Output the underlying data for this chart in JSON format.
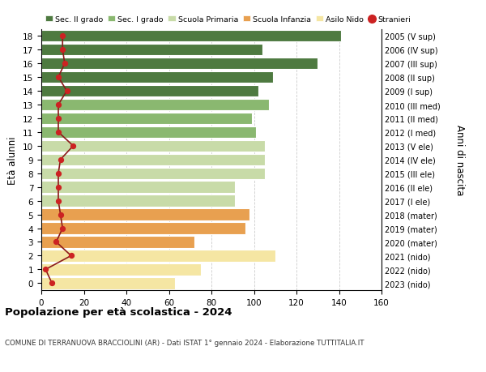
{
  "ages": [
    0,
    1,
    2,
    3,
    4,
    5,
    6,
    7,
    8,
    9,
    10,
    11,
    12,
    13,
    14,
    15,
    16,
    17,
    18
  ],
  "bar_values": [
    63,
    75,
    110,
    72,
    96,
    98,
    91,
    91,
    105,
    105,
    105,
    101,
    99,
    107,
    102,
    109,
    130,
    104,
    141
  ],
  "bar_colors": [
    "#f5e6a3",
    "#f5e6a3",
    "#f5e6a3",
    "#e8a050",
    "#e8a050",
    "#e8a050",
    "#c8dba8",
    "#c8dba8",
    "#c8dba8",
    "#c8dba8",
    "#c8dba8",
    "#8ab870",
    "#8ab870",
    "#8ab870",
    "#4e7a40",
    "#4e7a40",
    "#4e7a40",
    "#4e7a40",
    "#4e7a40"
  ],
  "stranieri_values": [
    5,
    2,
    14,
    7,
    10,
    9,
    8,
    8,
    8,
    9,
    15,
    8,
    8,
    8,
    12,
    8,
    11,
    10,
    10
  ],
  "right_labels": [
    "2023 (nido)",
    "2022 (nido)",
    "2021 (nido)",
    "2020 (mater)",
    "2019 (mater)",
    "2018 (mater)",
    "2017 (I ele)",
    "2016 (II ele)",
    "2015 (III ele)",
    "2014 (IV ele)",
    "2013 (V ele)",
    "2012 (I med)",
    "2011 (II med)",
    "2010 (III med)",
    "2009 (I sup)",
    "2008 (II sup)",
    "2007 (III sup)",
    "2006 (IV sup)",
    "2005 (V sup)"
  ],
  "ylabel": "Età alunni",
  "right_ylabel": "Anni di nascita",
  "title": "Popolazione per età scolastica - 2024",
  "subtitle": "COMUNE DI TERRANUOVA BRACCIOLINI (AR) - Dati ISTAT 1° gennaio 2024 - Elaborazione TUTTITALIA.IT",
  "xlim": [
    0,
    160
  ],
  "xticks": [
    0,
    20,
    40,
    60,
    80,
    100,
    120,
    140,
    160
  ],
  "legend_labels": [
    "Sec. II grado",
    "Sec. I grado",
    "Scuola Primaria",
    "Scuola Infanzia",
    "Asilo Nido",
    "Stranieri"
  ],
  "legend_colors": [
    "#4e7a40",
    "#8ab870",
    "#c8dba8",
    "#e8a050",
    "#f5e6a3",
    "#cc2222"
  ],
  "bg_color": "#ffffff",
  "grid_color": "#cccccc",
  "bar_height": 0.85
}
